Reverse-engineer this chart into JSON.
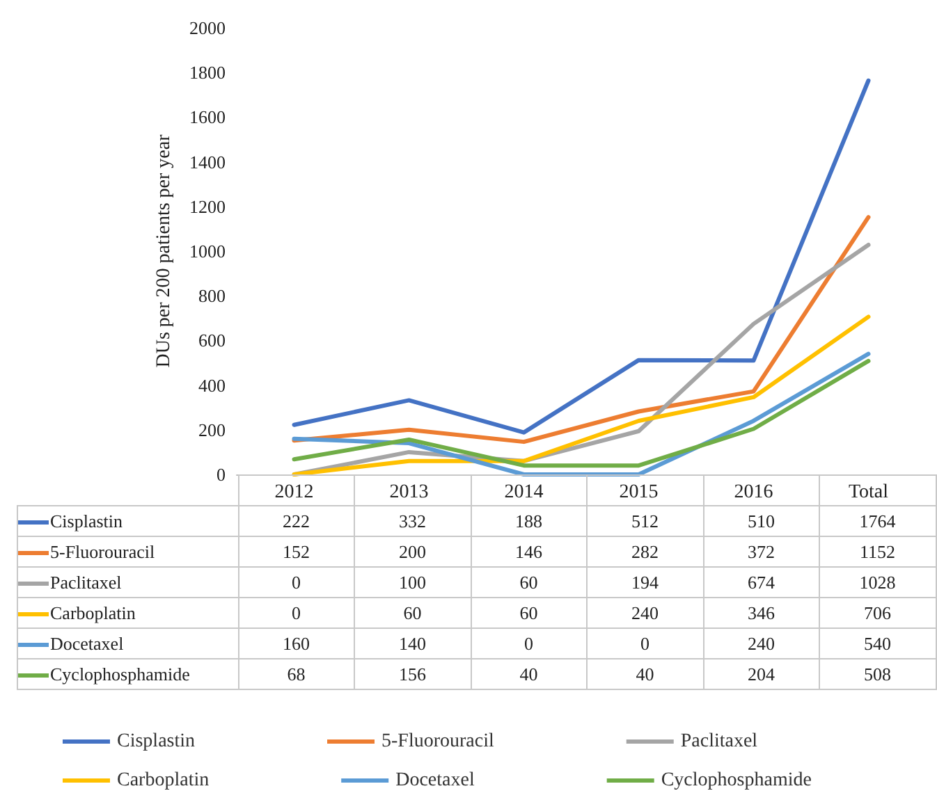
{
  "chart_data": {
    "type": "line",
    "ylabel": "DUs per 200 patients per year",
    "categories": [
      "2012",
      "2013",
      "2014",
      "2015",
      "2016",
      "Total"
    ],
    "series": [
      {
        "name": "Cisplastin",
        "color": "#4472c4",
        "values": [
          222,
          332,
          188,
          512,
          510,
          1764
        ]
      },
      {
        "name": "5-Fluorouracil",
        "color": "#ed7d31",
        "values": [
          152,
          200,
          146,
          282,
          372,
          1152
        ]
      },
      {
        "name": "Paclitaxel",
        "color": "#a5a5a5",
        "values": [
          0,
          100,
          60,
          194,
          674,
          1028
        ]
      },
      {
        "name": "Carboplatin",
        "color": "#ffc000",
        "values": [
          0,
          60,
          60,
          240,
          346,
          706
        ]
      },
      {
        "name": "Docetaxel",
        "color": "#5b9bd5",
        "values": [
          160,
          140,
          0,
          0,
          240,
          540
        ]
      },
      {
        "name": "Cyclophosphamide",
        "color": "#70ad47",
        "values": [
          68,
          156,
          40,
          40,
          204,
          508
        ]
      }
    ],
    "ylim": [
      0,
      2000
    ],
    "yticks": [
      0,
      200,
      400,
      600,
      800,
      1000,
      1200,
      1400,
      1600,
      1800,
      2000
    ],
    "grid": false,
    "legend": "bottom",
    "marker": "none",
    "line_style": "solid",
    "data_labels": true
  }
}
